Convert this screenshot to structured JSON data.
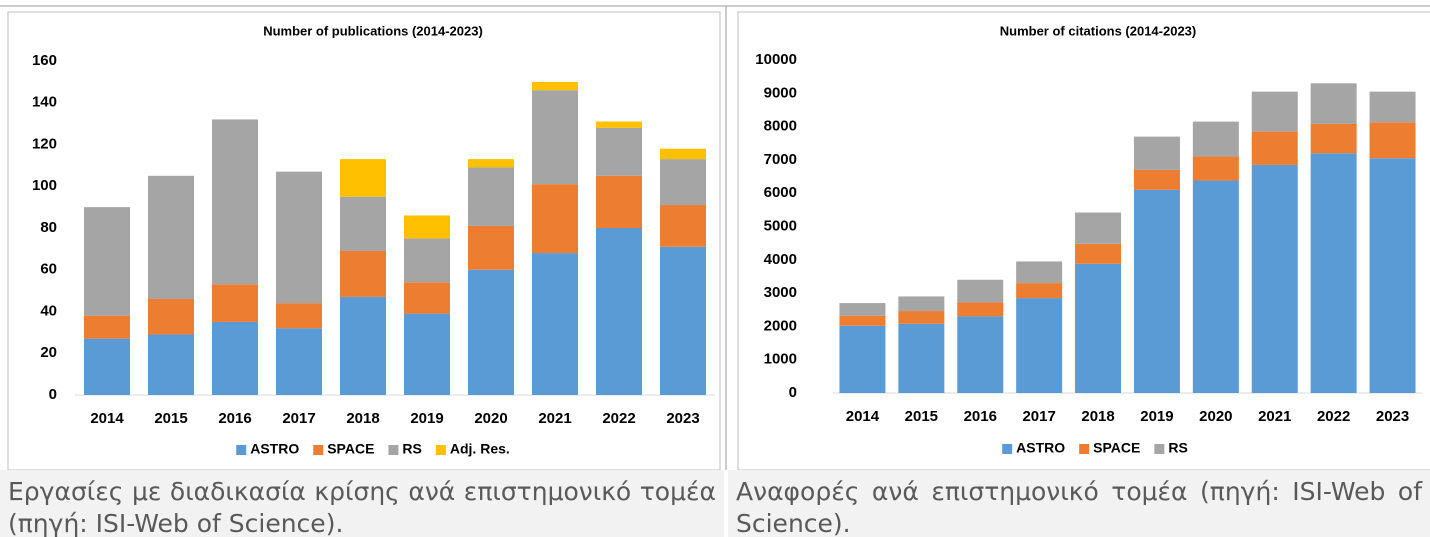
{
  "chart_data": [
    {
      "type": "stacked_bar",
      "title": "Number of publications (2014-2023)",
      "categories": [
        "2014",
        "2015",
        "2016",
        "2017",
        "2018",
        "2019",
        "2020",
        "2021",
        "2022",
        "2023"
      ],
      "series": [
        {
          "name": "ASTRO",
          "color": "#5b9bd5",
          "values": [
            27,
            29,
            35,
            32,
            47,
            39,
            60,
            68,
            80,
            71
          ]
        },
        {
          "name": "SPACE",
          "color": "#ed7d31",
          "values": [
            11,
            17,
            18,
            12,
            22,
            15,
            21,
            33,
            25,
            20
          ]
        },
        {
          "name": "RS",
          "color": "#a5a5a5",
          "values": [
            52,
            59,
            79,
            63,
            26,
            21,
            28,
            45,
            23,
            22
          ]
        },
        {
          "name": "Adj. Res.",
          "color": "#ffc000",
          "values": [
            0,
            0,
            0,
            0,
            18,
            11,
            4,
            4,
            3,
            5
          ]
        }
      ],
      "ylim": [
        0,
        160
      ],
      "yticks": [
        0,
        20,
        40,
        60,
        80,
        100,
        120,
        140,
        160
      ],
      "legend": "bottom"
    },
    {
      "type": "stacked_bar",
      "title": "Number of citations (2014-2023)",
      "categories": [
        "2014",
        "2015",
        "2016",
        "2017",
        "2018",
        "2019",
        "2020",
        "2021",
        "2022",
        "2023"
      ],
      "series": [
        {
          "name": "ASTRO",
          "color": "#5b9bd5",
          "values": [
            2020,
            2080,
            2300,
            2850,
            3880,
            6100,
            6380,
            6850,
            7200,
            7050
          ]
        },
        {
          "name": "SPACE",
          "color": "#ed7d31",
          "values": [
            300,
            380,
            420,
            450,
            600,
            600,
            720,
            1000,
            880,
            1080
          ]
        },
        {
          "name": "RS",
          "color": "#a5a5a5",
          "values": [
            380,
            440,
            680,
            650,
            940,
            1000,
            1050,
            1200,
            1220,
            920
          ]
        }
      ],
      "ylim": [
        0,
        10000
      ],
      "yticks": [
        0,
        1000,
        2000,
        3000,
        4000,
        5000,
        6000,
        7000,
        8000,
        9000,
        10000
      ],
      "legend": "bottom"
    }
  ],
  "captions": [
    "Εργασίες με διαδικασία κρίσης ανά επιστημονικό τομέα (πηγή: ISI-Web of Science).",
    "Αναφορές ανά επιστημονικό τομέα (πηγή: ISI-Web of Science)."
  ]
}
